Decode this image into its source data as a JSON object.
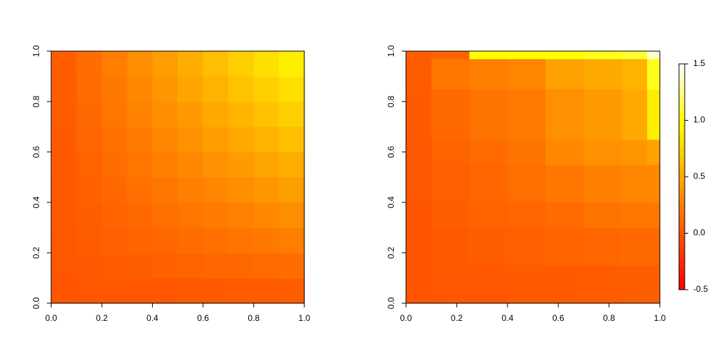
{
  "chart_data": [
    {
      "type": "heatmap",
      "palette": "heat",
      "zlim": [
        -0.5,
        1.5
      ],
      "xlim": [
        0,
        1
      ],
      "ylim": [
        0,
        1
      ],
      "xticks": [
        {
          "value": 0,
          "label": "0.0"
        },
        0.2,
        0.4,
        0.6,
        0.8,
        {
          "value": 1,
          "label": "1.0"
        }
      ],
      "yticks": [
        {
          "value": 0,
          "label": "0.0"
        },
        0.2,
        0.4,
        0.6,
        0.8,
        {
          "value": 1,
          "label": "1.0"
        }
      ],
      "x_breaks": [
        0,
        0.1,
        0.2,
        0.3,
        0.4,
        0.5,
        0.6,
        0.7,
        0.8,
        0.9,
        1
      ],
      "y_breaks": [
        0,
        0.1,
        0.2,
        0.3,
        0.4,
        0.5,
        0.6,
        0.7,
        0.8,
        0.9,
        1
      ],
      "values": [
        [
          0,
          0.01,
          0.01,
          0.02,
          0.02,
          0.03,
          0.03,
          0.04,
          0.04,
          0.05
        ],
        [
          0.01,
          0.02,
          0.04,
          0.05,
          0.07,
          0.08,
          0.1,
          0.11,
          0.13,
          0.14
        ],
        [
          0.01,
          0.04,
          0.06,
          0.09,
          0.11,
          0.14,
          0.16,
          0.19,
          0.21,
          0.24
        ],
        [
          0.02,
          0.05,
          0.09,
          0.12,
          0.16,
          0.19,
          0.23,
          0.26,
          0.3,
          0.33
        ],
        [
          0.02,
          0.07,
          0.11,
          0.16,
          0.2,
          0.25,
          0.29,
          0.34,
          0.38,
          0.43
        ],
        [
          0.03,
          0.08,
          0.14,
          0.19,
          0.25,
          0.3,
          0.36,
          0.41,
          0.47,
          0.52
        ],
        [
          0.03,
          0.1,
          0.16,
          0.23,
          0.29,
          0.36,
          0.42,
          0.49,
          0.55,
          0.62
        ],
        [
          0.04,
          0.11,
          0.19,
          0.26,
          0.34,
          0.41,
          0.49,
          0.56,
          0.64,
          0.71
        ],
        [
          0.04,
          0.13,
          0.21,
          0.3,
          0.38,
          0.47,
          0.55,
          0.64,
          0.72,
          0.81
        ],
        [
          0.05,
          0.14,
          0.24,
          0.33,
          0.43,
          0.52,
          0.62,
          0.71,
          0.81,
          0.9
        ]
      ]
    },
    {
      "type": "heatmap",
      "palette": "heat",
      "zlim": [
        -0.5,
        1.5
      ],
      "xlim": [
        0,
        1
      ],
      "ylim": [
        0,
        1
      ],
      "xticks": [
        {
          "value": 0,
          "label": "0.0"
        },
        0.2,
        0.4,
        0.6,
        0.8,
        {
          "value": 1,
          "label": "1.0"
        }
      ],
      "yticks": [
        {
          "value": 0,
          "label": "0.0"
        },
        0.2,
        0.4,
        0.6,
        0.8,
        {
          "value": 1,
          "label": "1.0"
        }
      ],
      "x_breaks": [
        0,
        0.1,
        0.25,
        0.4,
        0.55,
        0.7,
        0.85,
        0.95,
        1
      ],
      "y_breaks": [
        0,
        0.15,
        0.3,
        0.4,
        0.55,
        0.65,
        0.85,
        0.97,
        1
      ],
      "values": [
        [
          0,
          0.02,
          0.02,
          0.03,
          0.03,
          0.04,
          0.05,
          0.05
        ],
        [
          0,
          0.03,
          0.05,
          0.06,
          0.08,
          0.1,
          0.12,
          0.12
        ],
        [
          0,
          0.05,
          0.08,
          0.1,
          0.13,
          0.18,
          0.2,
          0.2
        ],
        [
          0.01,
          0.06,
          0.1,
          0.15,
          0.2,
          0.25,
          0.28,
          0.3
        ],
        [
          0.02,
          0.08,
          0.13,
          0.18,
          0.3,
          0.35,
          0.38,
          0.45
        ],
        [
          0.03,
          0.12,
          0.18,
          0.22,
          0.35,
          0.4,
          0.5,
          0.9
        ],
        [
          0.04,
          0.2,
          0.25,
          0.28,
          0.45,
          0.5,
          0.55,
          1.05
        ],
        [
          0.05,
          0.08,
          1.0,
          1.0,
          1.0,
          1.05,
          1.1,
          1.4
        ]
      ],
      "colorbar_ticks": [
        -0.5,
        {
          "value": 0,
          "label": "0.0"
        },
        0.5,
        {
          "value": 1,
          "label": "1.0"
        },
        1.5
      ]
    }
  ]
}
